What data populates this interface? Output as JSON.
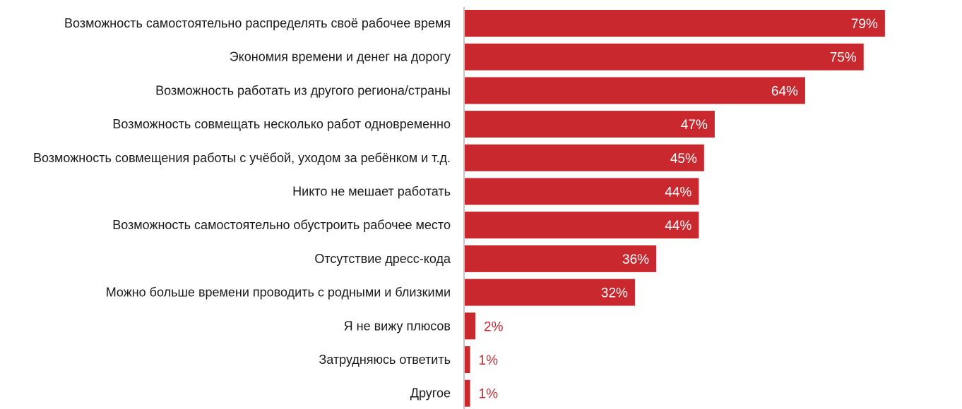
{
  "chart_data": {
    "type": "bar",
    "orientation": "horizontal",
    "title": "",
    "xlabel": "",
    "ylabel": "",
    "xlim": [
      0,
      80
    ],
    "grid": false,
    "bar_color": "#c8282e",
    "categories": [
      "Возможность самостоятельно распределять своё рабочее время",
      "Экономия времени и денег на дорогу",
      "Возможность работать из другого региона/страны",
      "Возможность совмещать несколько работ одновременно",
      "Возможность совмещения работы с учёбой, уходом за ребёнком и т.д.",
      "Никто не мешает работать",
      "Возможность самостоятельно обустроить рабочее место",
      "Отсутствие дресс-кода",
      "Можно больше времени проводить с родными и близкими",
      "Я не вижу плюсов",
      "Затрудняюсь ответить",
      "Другое"
    ],
    "values": [
      79,
      75,
      64,
      47,
      45,
      44,
      44,
      36,
      32,
      2,
      1,
      1
    ],
    "data_labels": [
      "79%",
      "75%",
      "64%",
      "47%",
      "45%",
      "44%",
      "44%",
      "36%",
      "32%",
      "2%",
      "1%",
      "1%"
    ]
  }
}
